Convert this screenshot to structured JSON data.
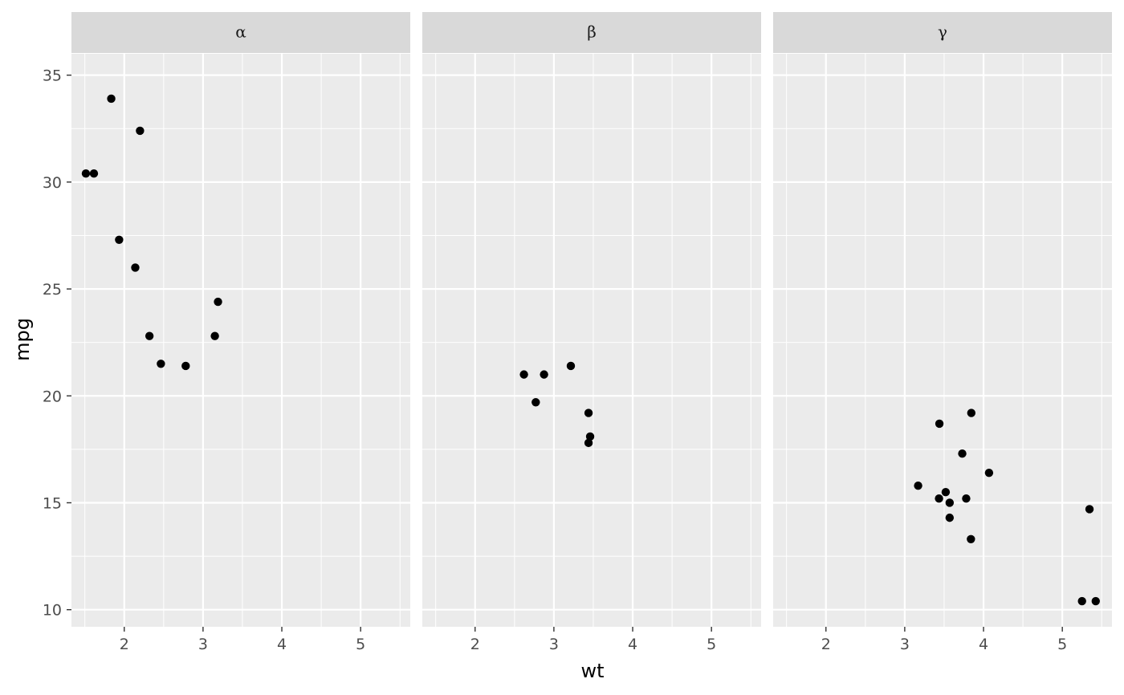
{
  "chart_data": {
    "type": "scatter",
    "facet_variable": "panel",
    "xlabel": "wt",
    "ylabel": "mpg",
    "xlim": [
      1.33,
      5.63
    ],
    "ylim": [
      9.2,
      36.0
    ],
    "x_ticks": [
      2,
      3,
      4,
      5
    ],
    "y_ticks": [
      10,
      15,
      20,
      25,
      30,
      35
    ],
    "grid": true,
    "colors": {
      "panel_background": "#ebebeb",
      "strip_background": "#d9d9d9",
      "grid": "#ffffff",
      "point": "#000000",
      "tick": "#333333"
    },
    "panels": [
      {
        "label": "α",
        "points": [
          {
            "x": 1.513,
            "y": 30.4
          },
          {
            "x": 1.615,
            "y": 30.4
          },
          {
            "x": 1.835,
            "y": 33.9
          },
          {
            "x": 1.935,
            "y": 27.3
          },
          {
            "x": 2.14,
            "y": 26.0
          },
          {
            "x": 2.2,
            "y": 32.4
          },
          {
            "x": 2.32,
            "y": 22.8
          },
          {
            "x": 2.465,
            "y": 21.5
          },
          {
            "x": 2.78,
            "y": 21.4
          },
          {
            "x": 3.15,
            "y": 22.8
          },
          {
            "x": 3.19,
            "y": 24.4
          }
        ]
      },
      {
        "label": "β",
        "points": [
          {
            "x": 2.62,
            "y": 21.0
          },
          {
            "x": 2.77,
            "y": 19.7
          },
          {
            "x": 2.875,
            "y": 21.0
          },
          {
            "x": 3.215,
            "y": 21.4
          },
          {
            "x": 3.44,
            "y": 19.2
          },
          {
            "x": 3.44,
            "y": 17.8
          },
          {
            "x": 3.46,
            "y": 18.1
          }
        ]
      },
      {
        "label": "γ",
        "points": [
          {
            "x": 3.17,
            "y": 15.8
          },
          {
            "x": 3.435,
            "y": 15.2
          },
          {
            "x": 3.44,
            "y": 18.7
          },
          {
            "x": 3.52,
            "y": 15.5
          },
          {
            "x": 3.57,
            "y": 15.0
          },
          {
            "x": 3.57,
            "y": 14.3
          },
          {
            "x": 3.73,
            "y": 17.3
          },
          {
            "x": 3.78,
            "y": 15.2
          },
          {
            "x": 3.84,
            "y": 13.3
          },
          {
            "x": 3.845,
            "y": 19.2
          },
          {
            "x": 4.07,
            "y": 16.4
          },
          {
            "x": 5.25,
            "y": 10.4
          },
          {
            "x": 5.345,
            "y": 14.7
          },
          {
            "x": 5.424,
            "y": 10.4
          }
        ]
      }
    ]
  }
}
